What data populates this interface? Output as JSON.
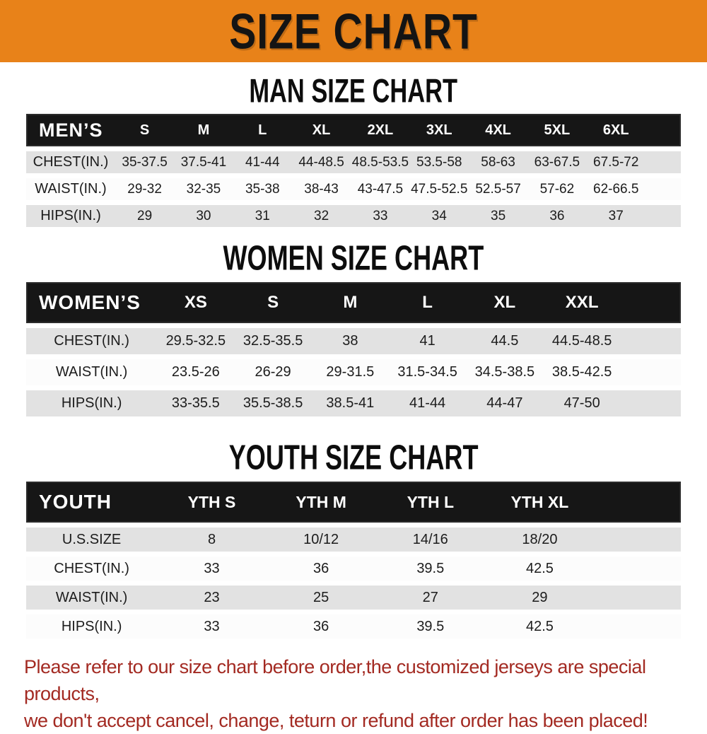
{
  "banner": {
    "title": "SIZE CHART",
    "bg_color": "#E88219",
    "text_color": "#141414"
  },
  "colors": {
    "table_header_bg": "#161616",
    "row_gray": "#E2E2E2",
    "row_white": "#FCFCFC",
    "footer_text": "#A32A22"
  },
  "sections": [
    {
      "heading": "MAN SIZE CHART",
      "group_label": "MEN’S",
      "columns": [
        "S",
        "M",
        "L",
        "XL",
        "2XL",
        "3XL",
        "4XL",
        "5XL",
        "6XL"
      ],
      "rows": [
        {
          "label": "CHEST(IN.)",
          "values": [
            "35-37.5",
            "37.5-41",
            "41-44",
            "44-48.5",
            "48.5-53.5",
            "53.5-58",
            "58-63",
            "63-67.5",
            "67.5-72"
          ]
        },
        {
          "label": "WAIST(IN.)",
          "values": [
            "29-32",
            "32-35",
            "35-38",
            "38-43",
            "43-47.5",
            "47.5-52.5",
            "52.5-57",
            "57-62",
            "62-66.5"
          ]
        },
        {
          "label": "HIPS(IN.)",
          "values": [
            "29",
            "30",
            "31",
            "32",
            "33",
            "34",
            "35",
            "36",
            "37"
          ]
        }
      ]
    },
    {
      "heading": "WOMEN SIZE CHART",
      "group_label": "WOMEN’S",
      "columns": [
        "XS",
        "S",
        "M",
        "L",
        "XL",
        "XXL"
      ],
      "rows": [
        {
          "label": "CHEST(IN.)",
          "values": [
            "29.5-32.5",
            "32.5-35.5",
            "38",
            "41",
            "44.5",
            "44.5-48.5"
          ]
        },
        {
          "label": "WAIST(IN.)",
          "values": [
            "23.5-26",
            "26-29",
            "29-31.5",
            "31.5-34.5",
            "34.5-38.5",
            "38.5-42.5"
          ]
        },
        {
          "label": "HIPS(IN.)",
          "values": [
            "33-35.5",
            "35.5-38.5",
            "38.5-41",
            "41-44",
            "44-47",
            "47-50"
          ]
        }
      ]
    },
    {
      "heading": "YOUTH SIZE CHART",
      "group_label": "YOUTH",
      "columns": [
        "YTH S",
        "YTH M",
        "YTH L",
        "YTH XL"
      ],
      "rows": [
        {
          "label": "U.S.SIZE",
          "values": [
            "8",
            "10/12",
            "14/16",
            "18/20"
          ]
        },
        {
          "label": "CHEST(IN.)",
          "values": [
            "33",
            "36",
            "39.5",
            "42.5"
          ]
        },
        {
          "label": "WAIST(IN.)",
          "values": [
            "23",
            "25",
            "27",
            "29"
          ]
        },
        {
          "label": "HIPS(IN.)",
          "values": [
            "33",
            "36",
            "39.5",
            "42.5"
          ]
        }
      ]
    }
  ],
  "footer": {
    "line1": "Please refer to our size chart before order,the customized jerseys are special products,",
    "line2": "we don't accept cancel, change, teturn or refund after order has been placed!"
  }
}
